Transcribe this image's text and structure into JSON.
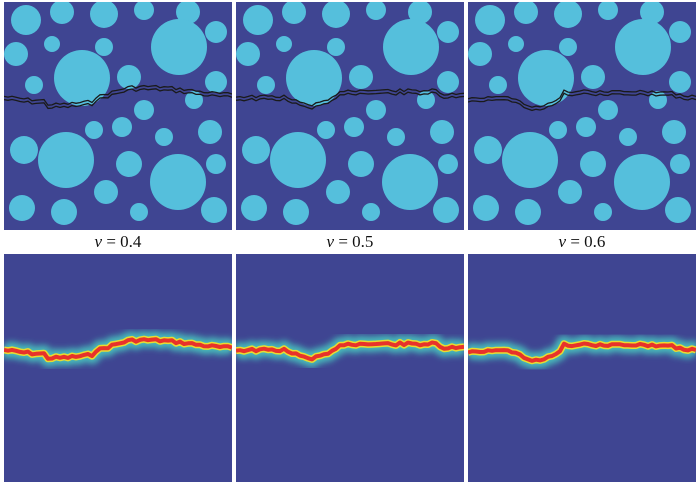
{
  "panels_top": [
    {
      "caption_var": "v",
      "caption_eq": " = 0.4",
      "variant": 0
    },
    {
      "caption_var": "v",
      "caption_eq": " = 0.5",
      "variant": 1
    },
    {
      "caption_var": "v",
      "caption_eq": " = 0.6",
      "variant": 2
    }
  ],
  "panels_bottom": [
    {
      "variant": 0
    },
    {
      "variant": 1
    },
    {
      "variant": 2
    }
  ],
  "colors": {
    "matrix": "#3f4592",
    "aggregate": "#55bfdc",
    "crack_line": "#1a1a1a",
    "field_background": "#3f4592",
    "field_halo": "#49c9c0",
    "field_mid": "#e8dc30",
    "field_core": "#e8322a"
  }
}
